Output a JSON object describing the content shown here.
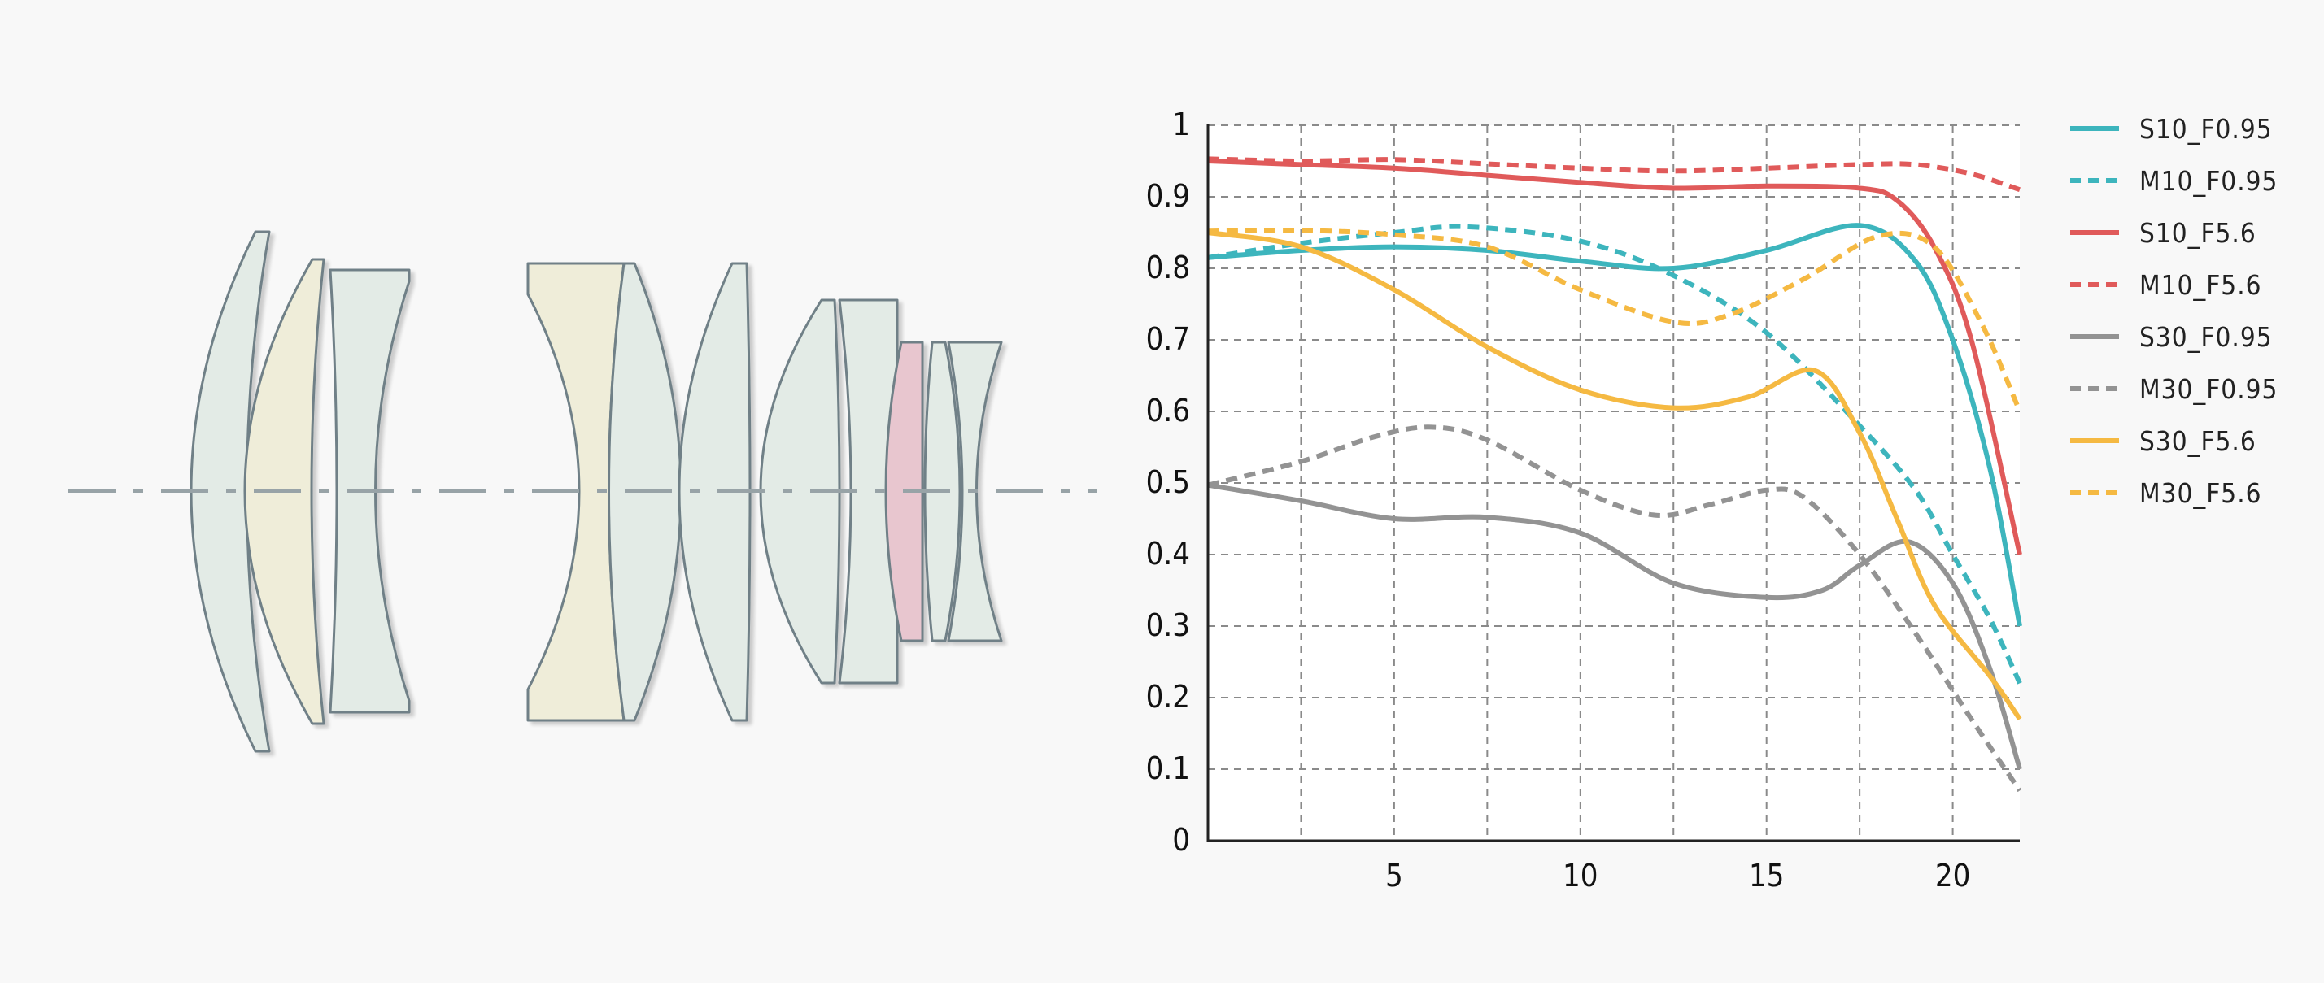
{
  "lens_diagram": {
    "colors": {
      "glass": "#e3ebe6",
      "glass_yellow": "#efedd9",
      "glass_pink": "#e8c6cf",
      "outline": "#6f8087",
      "axis": "#98a3a7"
    }
  },
  "chart_data": {
    "type": "line",
    "xlim": [
      0,
      21.8
    ],
    "ylim": [
      0,
      1
    ],
    "x_ticks": [
      5,
      10,
      15,
      20
    ],
    "y_ticks": [
      0,
      0.1,
      0.2,
      0.3,
      0.4,
      0.5,
      0.6,
      0.7,
      0.8,
      0.9,
      1
    ],
    "y_tick_labels": [
      "0",
      "0.1",
      "0.2",
      "0.3",
      "0.4",
      "0.5",
      "0.6",
      "0.7",
      "0.8",
      "0.9",
      "1"
    ],
    "grid": true,
    "legend_position": "right",
    "series": [
      {
        "name": "S10_F0.95",
        "color": "#3db5bd",
        "style": "solid",
        "points": [
          [
            0,
            0.815
          ],
          [
            2.5,
            0.825
          ],
          [
            5,
            0.83
          ],
          [
            7.5,
            0.825
          ],
          [
            10,
            0.81
          ],
          [
            12.5,
            0.8
          ],
          [
            15,
            0.825
          ],
          [
            17.5,
            0.86
          ],
          [
            19,
            0.81
          ],
          [
            20,
            0.7
          ],
          [
            21,
            0.52
          ],
          [
            21.8,
            0.3
          ]
        ]
      },
      {
        "name": "M10_F0.95",
        "color": "#3db5bd",
        "style": "dashed",
        "points": [
          [
            0,
            0.815
          ],
          [
            2.5,
            0.835
          ],
          [
            5,
            0.85
          ],
          [
            7,
            0.858
          ],
          [
            10,
            0.838
          ],
          [
            12.5,
            0.79
          ],
          [
            15,
            0.71
          ],
          [
            17.5,
            0.58
          ],
          [
            19,
            0.49
          ],
          [
            20,
            0.4
          ],
          [
            21,
            0.31
          ],
          [
            21.8,
            0.22
          ]
        ]
      },
      {
        "name": "S10_F5.6",
        "color": "#e05a5a",
        "style": "solid",
        "points": [
          [
            0,
            0.95
          ],
          [
            2.5,
            0.945
          ],
          [
            5,
            0.94
          ],
          [
            7.5,
            0.93
          ],
          [
            10,
            0.92
          ],
          [
            12.5,
            0.912
          ],
          [
            15,
            0.915
          ],
          [
            17.5,
            0.912
          ],
          [
            18.5,
            0.895
          ],
          [
            19.5,
            0.83
          ],
          [
            20.5,
            0.7
          ],
          [
            21.8,
            0.4
          ]
        ]
      },
      {
        "name": "M10_F5.6",
        "color": "#e05a5a",
        "style": "dashed",
        "points": [
          [
            0,
            0.953
          ],
          [
            2.5,
            0.95
          ],
          [
            5,
            0.952
          ],
          [
            7.5,
            0.946
          ],
          [
            10,
            0.94
          ],
          [
            12.5,
            0.936
          ],
          [
            15,
            0.94
          ],
          [
            17.5,
            0.945
          ],
          [
            19,
            0.945
          ],
          [
            20.5,
            0.932
          ],
          [
            21.8,
            0.91
          ]
        ]
      },
      {
        "name": "S30_F0.95",
        "color": "#939393",
        "style": "solid",
        "points": [
          [
            0,
            0.497
          ],
          [
            2.5,
            0.475
          ],
          [
            5,
            0.45
          ],
          [
            7.5,
            0.452
          ],
          [
            10,
            0.43
          ],
          [
            12.5,
            0.36
          ],
          [
            15,
            0.34
          ],
          [
            16.5,
            0.35
          ],
          [
            17.5,
            0.385
          ],
          [
            18.8,
            0.418
          ],
          [
            20,
            0.36
          ],
          [
            21,
            0.24
          ],
          [
            21.8,
            0.1
          ]
        ]
      },
      {
        "name": "M30_F0.95",
        "color": "#939393",
        "style": "dashed",
        "points": [
          [
            0,
            0.497
          ],
          [
            2.5,
            0.53
          ],
          [
            4.5,
            0.565
          ],
          [
            6,
            0.578
          ],
          [
            7.5,
            0.56
          ],
          [
            10,
            0.49
          ],
          [
            12,
            0.455
          ],
          [
            13.5,
            0.47
          ],
          [
            15,
            0.49
          ],
          [
            16,
            0.48
          ],
          [
            17.5,
            0.4
          ],
          [
            19,
            0.29
          ],
          [
            20.5,
            0.17
          ],
          [
            21.8,
            0.07
          ]
        ]
      },
      {
        "name": "S30_F5.6",
        "color": "#f5b942",
        "style": "solid",
        "points": [
          [
            0,
            0.85
          ],
          [
            2.5,
            0.83
          ],
          [
            5,
            0.77
          ],
          [
            7.5,
            0.69
          ],
          [
            10,
            0.63
          ],
          [
            12.5,
            0.605
          ],
          [
            14.5,
            0.62
          ],
          [
            16.3,
            0.657
          ],
          [
            17.5,
            0.57
          ],
          [
            18.5,
            0.45
          ],
          [
            19.5,
            0.33
          ],
          [
            21,
            0.23
          ],
          [
            21.8,
            0.17
          ]
        ]
      },
      {
        "name": "M30_F5.6",
        "color": "#f5b942",
        "style": "dashed",
        "points": [
          [
            0,
            0.852
          ],
          [
            2.5,
            0.853
          ],
          [
            5,
            0.847
          ],
          [
            7.5,
            0.83
          ],
          [
            10,
            0.77
          ],
          [
            12.5,
            0.725
          ],
          [
            14,
            0.735
          ],
          [
            16,
            0.785
          ],
          [
            18,
            0.845
          ],
          [
            19.5,
            0.83
          ],
          [
            20.8,
            0.72
          ],
          [
            21.8,
            0.6
          ]
        ]
      }
    ]
  }
}
